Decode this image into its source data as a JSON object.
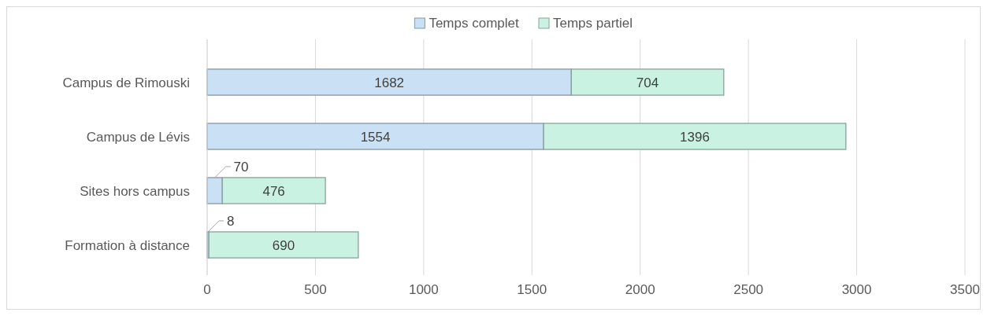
{
  "chart_data": {
    "type": "bar",
    "orientation": "horizontal",
    "stacked": true,
    "categories": [
      "Campus de Rimouski",
      "Campus de Lévis",
      "Sites hors campus",
      "Formation à distance"
    ],
    "series": [
      {
        "name": "Temps complet",
        "color": "#c9e0f5",
        "values": [
          1682,
          1554,
          70,
          8
        ]
      },
      {
        "name": "Temps partiel",
        "color": "#c9f2e2",
        "values": [
          704,
          1396,
          476,
          690
        ]
      }
    ],
    "xlim": [
      0,
      3500
    ],
    "xticks": [
      0,
      500,
      1000,
      1500,
      2000,
      2500,
      3000,
      3500
    ],
    "grid": "x",
    "legend": "top",
    "data_labels": true
  }
}
